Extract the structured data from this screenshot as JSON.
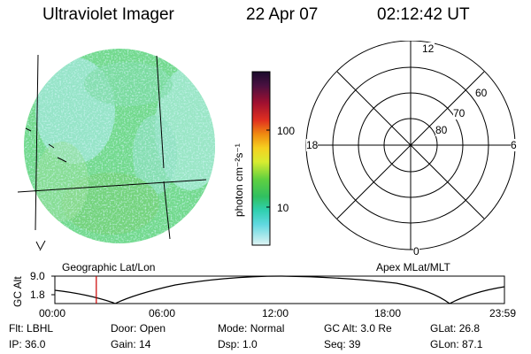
{
  "header": {
    "instrument": "Ultraviolet Imager",
    "date": "22 Apr 07",
    "time": "02:12:42 UT"
  },
  "colorbar": {
    "unit_label": "photon cm⁻²s⁻¹",
    "tick_labels": [
      "100",
      "10"
    ]
  },
  "polar_plot": {
    "mlt_labels": {
      "top": "12",
      "left": "18",
      "right": "6",
      "bottom": "0"
    },
    "lat_labels": [
      "60",
      "70",
      "80"
    ]
  },
  "timeline": {
    "ylabel": "GC Alt",
    "ytick_top": "9.0",
    "ytick_bottom": "1.8",
    "left_title": "Geographic Lat/Lon",
    "right_title": "Apex MLat/MLT",
    "time_ticks": [
      "00:00",
      "06:00",
      "12:00",
      "18:00",
      "23:59"
    ],
    "current_marker_hour": 2.21
  },
  "info_rows": [
    [
      {
        "label": "Flt:",
        "value": "LBHL"
      },
      {
        "label": "Door:",
        "value": "Open"
      },
      {
        "label": "Mode:",
        "value": "Normal"
      },
      {
        "label": "GC Alt:",
        "value": "3.0 Re"
      },
      {
        "label": "GLat:",
        "value": "26.8"
      }
    ],
    [
      {
        "label": "IP:",
        "value": "36.0"
      },
      {
        "label": "Gain:",
        "value": "14"
      },
      {
        "label": "Dsp:",
        "value": "1.0"
      },
      {
        "label": "Seq:",
        "value": "39"
      },
      {
        "label": "GLon:",
        "value": "87.1"
      }
    ]
  ],
  "colors": {
    "marker": "#cc0000",
    "image_base": "#6fd98a"
  }
}
